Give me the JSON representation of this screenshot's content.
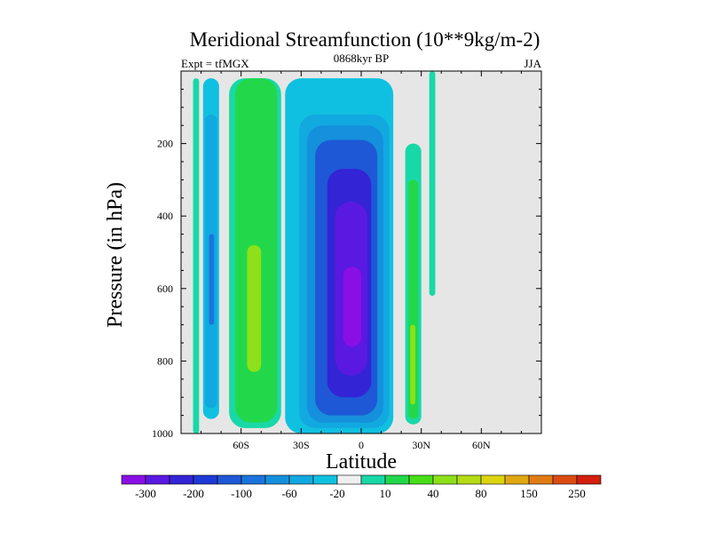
{
  "chart_data": {
    "type": "contour",
    "title": "Meridional Streamfunction (10**9kg/m-2)",
    "left_label": "Expt = tfMGX",
    "center_label": "0868kyr BP",
    "right_label": "JJA",
    "xlabel": "Latitude",
    "ylabel": "Pressure (in hPa)",
    "xlim": [
      -90,
      90
    ],
    "ylim": [
      0,
      1000
    ],
    "y_inverted": true,
    "x_ticks": [
      {
        "value": -60,
        "label": "60S"
      },
      {
        "value": -30,
        "label": "30S"
      },
      {
        "value": 0,
        "label": "0"
      },
      {
        "value": 30,
        "label": "30N"
      },
      {
        "value": 60,
        "label": "60N"
      }
    ],
    "y_ticks": [
      {
        "value": 200,
        "label": "200"
      },
      {
        "value": 400,
        "label": "400"
      },
      {
        "value": 600,
        "label": "600"
      },
      {
        "value": 800,
        "label": "800"
      },
      {
        "value": 1000,
        "label": "1000"
      }
    ],
    "no_data_color": "#e6e6e6",
    "colorbar": {
      "labels": [
        "-300",
        "-200",
        "-100",
        "-60",
        "-20",
        "10",
        "40",
        "80",
        "150",
        "250"
      ],
      "colors": [
        "#8a0fe6",
        "#5a19e0",
        "#3324d6",
        "#1e3ad6",
        "#1e58d6",
        "#1a74dc",
        "#1590dc",
        "#12a8e0",
        "#10c0e0",
        "#f0f0f0",
        "#18d8a8",
        "#22d84a",
        "#48de18",
        "#8ee01a",
        "#b4dc14",
        "#dcd40e",
        "#e0a810",
        "#e07c12",
        "#dc4c12",
        "#d41e0e"
      ]
    },
    "series": [
      {
        "name": "positive cell 84S",
        "level": 20,
        "color": "#18d8a8",
        "lat": [
          -84,
          -81
        ],
        "p": [
          20,
          1000
        ]
      },
      {
        "name": "negative cell 78S",
        "level": -20,
        "color": "#10c0e0",
        "lat": [
          -79,
          -71
        ],
        "p": [
          20,
          960
        ]
      },
      {
        "name": "negative cell core 78S",
        "level": -60,
        "color": "#12a8e0",
        "lat": [
          -78,
          -72
        ],
        "p": [
          120,
          930
        ]
      },
      {
        "name": "negative cell center 75S",
        "level": -100,
        "color": "#1a74dc",
        "lat": [
          -76,
          -73.5
        ],
        "p": [
          450,
          700
        ]
      },
      {
        "name": "SH positive cell outer",
        "level": 10,
        "color": "#18d8a8",
        "lat": [
          -66,
          -40
        ],
        "p": [
          20,
          985
        ]
      },
      {
        "name": "SH positive cell",
        "level": 40,
        "color": "#22d84a",
        "lat": [
          -63,
          -42
        ],
        "p": [
          20,
          970
        ]
      },
      {
        "name": "SH positive cell core",
        "level": 80,
        "color": "#8ee01a",
        "lat": [
          -57,
          -50
        ],
        "p": [
          480,
          830
        ]
      },
      {
        "name": "tropical negative cell outer",
        "level": -20,
        "color": "#10c0e0",
        "lat": [
          -38,
          16
        ],
        "p": [
          20,
          1000
        ]
      },
      {
        "name": "tropical negative -60",
        "level": -60,
        "color": "#12a8e0",
        "lat": [
          -31,
          14
        ],
        "p": [
          120,
          985
        ]
      },
      {
        "name": "tropical negative -100",
        "level": -100,
        "color": "#1590dc",
        "lat": [
          -27,
          11
        ],
        "p": [
          150,
          970
        ]
      },
      {
        "name": "tropical negative -150",
        "level": -150,
        "color": "#1e58d6",
        "lat": [
          -23,
          8
        ],
        "p": [
          190,
          950
        ]
      },
      {
        "name": "tropical negative -200",
        "level": -200,
        "color": "#3324d6",
        "lat": [
          -17,
          5
        ],
        "p": [
          270,
          900
        ]
      },
      {
        "name": "tropical negative core -250",
        "level": -250,
        "color": "#5a19e0",
        "lat": [
          -13,
          3
        ],
        "p": [
          360,
          840
        ]
      },
      {
        "name": "tropical negative center -300",
        "level": -300,
        "color": "#8a0fe6",
        "lat": [
          -9,
          0
        ],
        "p": [
          540,
          760
        ]
      },
      {
        "name": "NH positive cell outer",
        "level": 10,
        "color": "#18d8a8",
        "lat": [
          22,
          30
        ],
        "p": [
          200,
          975
        ]
      },
      {
        "name": "NH positive cell core",
        "level": 40,
        "color": "#22d84a",
        "lat": [
          23.5,
          28.5
        ],
        "p": [
          300,
          960
        ]
      },
      {
        "name": "NH positive cell center",
        "level": 80,
        "color": "#8ee01a",
        "lat": [
          24.5,
          27
        ],
        "p": [
          700,
          920
        ]
      },
      {
        "name": "NH high-latitude strip",
        "level": 10,
        "color": "#18d8a8",
        "lat": [
          34,
          37
        ],
        "p": [
          0,
          620
        ]
      }
    ]
  }
}
